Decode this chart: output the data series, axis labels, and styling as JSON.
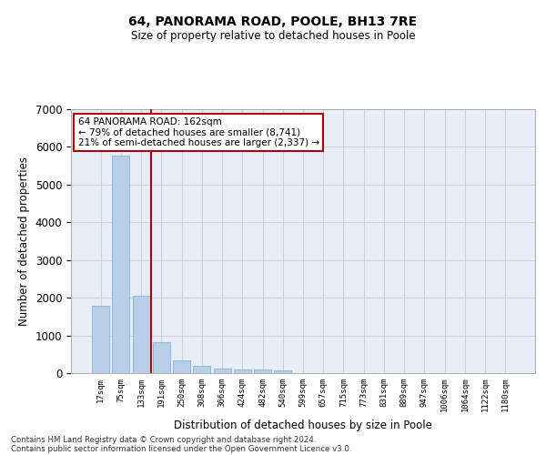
{
  "title": "64, PANORAMA ROAD, POOLE, BH13 7RE",
  "subtitle": "Size of property relative to detached houses in Poole",
  "xlabel": "Distribution of detached houses by size in Poole",
  "ylabel": "Number of detached properties",
  "bar_color": "#b8cfe8",
  "bar_edge_color": "#7aaad0",
  "categories": [
    "17sqm",
    "75sqm",
    "133sqm",
    "191sqm",
    "250sqm",
    "308sqm",
    "366sqm",
    "424sqm",
    "482sqm",
    "540sqm",
    "599sqm",
    "657sqm",
    "715sqm",
    "773sqm",
    "831sqm",
    "889sqm",
    "947sqm",
    "1006sqm",
    "1064sqm",
    "1122sqm",
    "1180sqm"
  ],
  "values": [
    1780,
    5780,
    2060,
    820,
    340,
    185,
    110,
    95,
    90,
    75,
    0,
    0,
    0,
    0,
    0,
    0,
    0,
    0,
    0,
    0,
    0
  ],
  "ylim": [
    0,
    7000
  ],
  "yticks": [
    0,
    1000,
    2000,
    3000,
    4000,
    5000,
    6000,
    7000
  ],
  "annotation_text": "64 PANORAMA ROAD: 162sqm\n← 79% of detached houses are smaller (8,741)\n21% of semi-detached houses are larger (2,337) →",
  "vline_x": 2.5,
  "vline_color": "#aa0000",
  "annotation_box_color": "#ffffff",
  "annotation_box_edge": "#aa0000",
  "footer_line1": "Contains HM Land Registry data © Crown copyright and database right 2024.",
  "footer_line2": "Contains public sector information licensed under the Open Government Licence v3.0.",
  "background_color": "#e8eef8",
  "grid_color": "#c8d0dc"
}
